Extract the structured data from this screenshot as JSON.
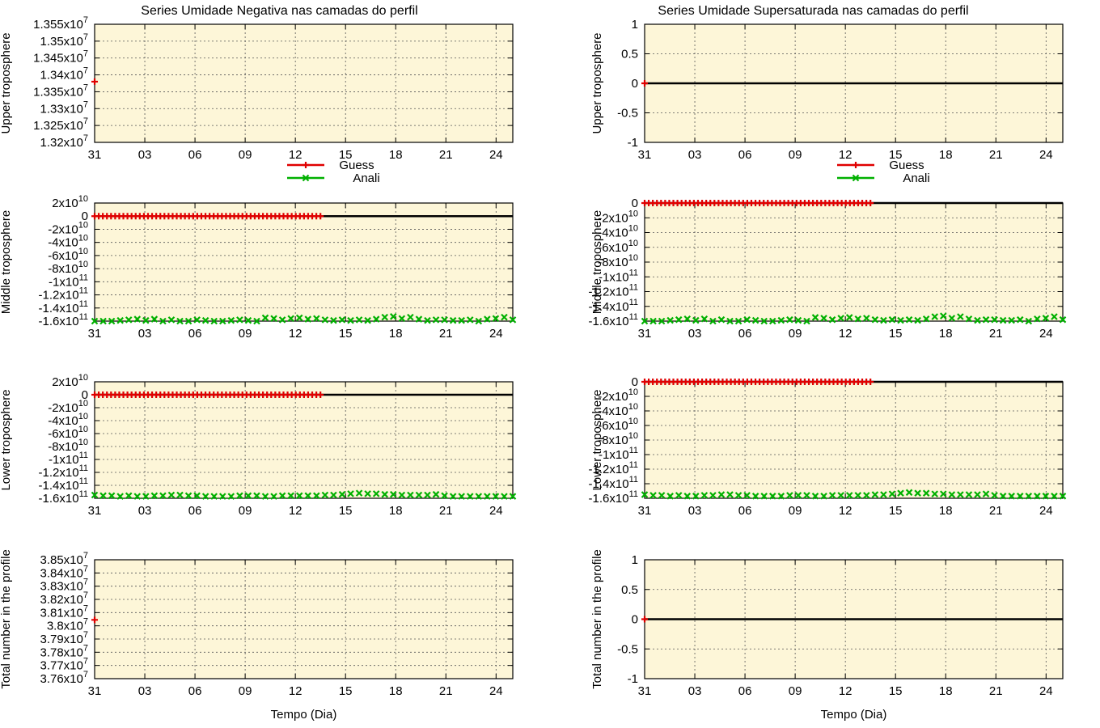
{
  "colors": {
    "guess": "#e00000",
    "anali": "#00b000",
    "plot_bg": "#fdf6d8",
    "zero_line": "#000000",
    "grid": "#555555"
  },
  "legend": {
    "guess": "Guess",
    "anali": "Anali"
  },
  "xlabel": "Tempo (Dia)",
  "xticks": [
    "31",
    "03",
    "06",
    "09",
    "12",
    "15",
    "18",
    "21",
    "24"
  ],
  "chart_data": [
    {
      "id": "neg-upper",
      "type": "scatter",
      "title": "Series Umidade Negativa nas camadas do perfil",
      "ylabel": "Upper troposphere",
      "yticks": [
        {
          "b": "1.355x10",
          "e": "7",
          "v": 13550000
        },
        {
          "b": "1.35x10",
          "e": "7",
          "v": 13500000
        },
        {
          "b": "1.345x10",
          "e": "7",
          "v": 13450000
        },
        {
          "b": "1.34x10",
          "e": "7",
          "v": 13400000
        },
        {
          "b": "1.335x10",
          "e": "7",
          "v": 13350000
        },
        {
          "b": "1.33x10",
          "e": "7",
          "v": 13300000
        },
        {
          "b": "1.325x10",
          "e": "7",
          "v": 13250000
        },
        {
          "b": "1.32x10",
          "e": "7",
          "v": 13200000
        }
      ],
      "ylim": [
        13200000,
        13550000
      ],
      "xlim": [
        0,
        25
      ],
      "zero_line": false,
      "legend": true,
      "series": [
        {
          "name": "Guess",
          "marker": "+",
          "x": [
            0
          ],
          "y": [
            13380000
          ]
        }
      ]
    },
    {
      "id": "sup-upper",
      "type": "scatter",
      "title": "Series Umidade Supersaturada nas camadas do perfil",
      "ylabel": "Upper troposphere",
      "yticks": [
        {
          "b": "1",
          "e": "",
          "v": 1
        },
        {
          "b": "0.5",
          "e": "",
          "v": 0.5
        },
        {
          "b": "0",
          "e": "",
          "v": 0
        },
        {
          "b": "-0.5",
          "e": "",
          "v": -0.5
        },
        {
          "b": "-1",
          "e": "",
          "v": -1
        }
      ],
      "ylim": [
        -1,
        1
      ],
      "xlim": [
        0,
        25
      ],
      "zero_line": true,
      "legend": true,
      "series": [
        {
          "name": "Guess",
          "marker": "+",
          "x": [
            0
          ],
          "y": [
            0
          ]
        }
      ]
    },
    {
      "id": "neg-middle",
      "type": "scatter",
      "title": "",
      "ylabel": "Middle troposphere",
      "yticks": [
        {
          "b": "2x10",
          "e": "10",
          "v": 20000000000.0
        },
        {
          "b": "0",
          "e": "",
          "v": 0
        },
        {
          "b": "-2x10",
          "e": "10",
          "v": -20000000000.0
        },
        {
          "b": "-4x10",
          "e": "10",
          "v": -40000000000.0
        },
        {
          "b": "-6x10",
          "e": "10",
          "v": -60000000000.0
        },
        {
          "b": "-8x10",
          "e": "10",
          "v": -80000000000.0
        },
        {
          "b": "-1x10",
          "e": "11",
          "v": -100000000000.0
        },
        {
          "b": "-1.2x10",
          "e": "11",
          "v": -120000000000.0
        },
        {
          "b": "-1.4x10",
          "e": "11",
          "v": -140000000000.0
        },
        {
          "b": "-1.6x10",
          "e": "11",
          "v": -160000000000.0
        }
      ],
      "ylim": [
        -160000000000.0,
        20000000000.0
      ],
      "xlim": [
        0,
        25
      ],
      "zero_line": true,
      "legend": false,
      "guess": {
        "x_start": 0,
        "x_end": 13.5,
        "y": 0
      },
      "anali": {
        "x_start": 0,
        "x_end": 25,
        "y": [
          -160000000000.0,
          -160000000000.0,
          -160000000000.0,
          -159000000000.0,
          -158000000000.0,
          -157000000000.0,
          -159000000000.0,
          -157000000000.0,
          -160000000000.0,
          -158000000000.0,
          -160000000000.0,
          -160000000000.0,
          -158000000000.0,
          -159000000000.0,
          -160000000000.0,
          -160000000000.0,
          -159000000000.0,
          -158000000000.0,
          -159000000000.0,
          -160000000000.0,
          -155000000000.0,
          -156000000000.0,
          -158000000000.0,
          -156000000000.0,
          -155000000000.0,
          -157000000000.0,
          -156000000000.0,
          -158000000000.0,
          -159000000000.0,
          -158000000000.0,
          -159000000000.0,
          -158000000000.0,
          -159000000000.0,
          -157000000000.0,
          -154000000000.0,
          -153000000000.0,
          -156000000000.0,
          -154000000000.0,
          -157000000000.0,
          -159000000000.0,
          -158000000000.0,
          -158000000000.0,
          -159000000000.0,
          -159000000000.0,
          -158000000000.0,
          -160000000000.0,
          -157000000000.0,
          -156000000000.0,
          -154000000000.0,
          -158000000000.0
        ]
      }
    },
    {
      "id": "sup-middle",
      "type": "scatter",
      "title": "",
      "ylabel": "Middle troposphere",
      "yticks": [
        {
          "b": "0",
          "e": "",
          "v": 0
        },
        {
          "b": "-2x10",
          "e": "10",
          "v": -20000000000.0
        },
        {
          "b": "-4x10",
          "e": "10",
          "v": -40000000000.0
        },
        {
          "b": "-6x10",
          "e": "10",
          "v": -60000000000.0
        },
        {
          "b": "-8x10",
          "e": "10",
          "v": -80000000000.0
        },
        {
          "b": "-1x10",
          "e": "11",
          "v": -100000000000.0
        },
        {
          "b": "-1.2x10",
          "e": "11",
          "v": -120000000000.0
        },
        {
          "b": "-1.4x10",
          "e": "11",
          "v": -140000000000.0
        },
        {
          "b": "-1.6x10",
          "e": "11",
          "v": -160000000000.0
        }
      ],
      "ylim": [
        -160000000000.0,
        0
      ],
      "xlim": [
        0,
        25
      ],
      "zero_line": true,
      "legend": false,
      "guess": {
        "x_start": 0,
        "x_end": 13.5,
        "y": 0
      },
      "anali": {
        "x_start": 0,
        "x_end": 25,
        "y": [
          -160000000000.0,
          -160000000000.0,
          -160000000000.0,
          -159000000000.0,
          -158000000000.0,
          -157000000000.0,
          -159000000000.0,
          -157000000000.0,
          -160000000000.0,
          -158000000000.0,
          -160000000000.0,
          -160000000000.0,
          -158000000000.0,
          -159000000000.0,
          -160000000000.0,
          -160000000000.0,
          -159000000000.0,
          -158000000000.0,
          -159000000000.0,
          -160000000000.0,
          -155000000000.0,
          -156000000000.0,
          -158000000000.0,
          -156000000000.0,
          -155000000000.0,
          -157000000000.0,
          -156000000000.0,
          -158000000000.0,
          -159000000000.0,
          -158000000000.0,
          -159000000000.0,
          -158000000000.0,
          -159000000000.0,
          -157000000000.0,
          -154000000000.0,
          -153000000000.0,
          -156000000000.0,
          -154000000000.0,
          -157000000000.0,
          -159000000000.0,
          -158000000000.0,
          -158000000000.0,
          -159000000000.0,
          -159000000000.0,
          -158000000000.0,
          -160000000000.0,
          -157000000000.0,
          -156000000000.0,
          -154000000000.0,
          -158000000000.0
        ]
      }
    },
    {
      "id": "neg-lower",
      "type": "scatter",
      "title": "",
      "ylabel": "Lower troposphere",
      "yticks": [
        {
          "b": "2x10",
          "e": "10",
          "v": 20000000000.0
        },
        {
          "b": "0",
          "e": "",
          "v": 0
        },
        {
          "b": "-2x10",
          "e": "10",
          "v": -20000000000.0
        },
        {
          "b": "-4x10",
          "e": "10",
          "v": -40000000000.0
        },
        {
          "b": "-6x10",
          "e": "10",
          "v": -60000000000.0
        },
        {
          "b": "-8x10",
          "e": "10",
          "v": -80000000000.0
        },
        {
          "b": "-1x10",
          "e": "11",
          "v": -100000000000.0
        },
        {
          "b": "-1.2x10",
          "e": "11",
          "v": -120000000000.0
        },
        {
          "b": "-1.4x10",
          "e": "11",
          "v": -140000000000.0
        },
        {
          "b": "-1.6x10",
          "e": "11",
          "v": -160000000000.0
        }
      ],
      "ylim": [
        -160000000000.0,
        20000000000.0
      ],
      "xlim": [
        0,
        25
      ],
      "zero_line": true,
      "legend": false,
      "guess": {
        "x_start": 0,
        "x_end": 13.5,
        "y": 0
      },
      "anali": {
        "x_start": 0,
        "x_end": 25,
        "y": [
          -155000000000.0,
          -156000000000.0,
          -156000000000.0,
          -157000000000.0,
          -156000000000.0,
          -157000000000.0,
          -157000000000.0,
          -156000000000.0,
          -156000000000.0,
          -155000000000.0,
          -155000000000.0,
          -156000000000.0,
          -156000000000.0,
          -157000000000.0,
          -157000000000.0,
          -157000000000.0,
          -157000000000.0,
          -156000000000.0,
          -156000000000.0,
          -156000000000.0,
          -157000000000.0,
          -157000000000.0,
          -156000000000.0,
          -156000000000.0,
          -156000000000.0,
          -156000000000.0,
          -156000000000.0,
          -155000000000.0,
          -155000000000.0,
          -154000000000.0,
          -153000000000.0,
          -152000000000.0,
          -153000000000.0,
          -153000000000.0,
          -154000000000.0,
          -154000000000.0,
          -155000000000.0,
          -155000000000.0,
          -155000000000.0,
          -155000000000.0,
          -154000000000.0,
          -156000000000.0,
          -157000000000.0,
          -157000000000.0,
          -157000000000.0,
          -157000000000.0,
          -157000000000.0,
          -157000000000.0,
          -157000000000.0,
          -157000000000.0
        ]
      }
    },
    {
      "id": "sup-lower",
      "type": "scatter",
      "title": "",
      "ylabel": "Lower troposphere",
      "yticks": [
        {
          "b": "0",
          "e": "",
          "v": 0
        },
        {
          "b": "-2x10",
          "e": "10",
          "v": -20000000000.0
        },
        {
          "b": "-4x10",
          "e": "10",
          "v": -40000000000.0
        },
        {
          "b": "-6x10",
          "e": "10",
          "v": -60000000000.0
        },
        {
          "b": "-8x10",
          "e": "10",
          "v": -80000000000.0
        },
        {
          "b": "-1x10",
          "e": "11",
          "v": -100000000000.0
        },
        {
          "b": "-1.2x10",
          "e": "11",
          "v": -120000000000.0
        },
        {
          "b": "-1.4x10",
          "e": "11",
          "v": -140000000000.0
        },
        {
          "b": "-1.6x10",
          "e": "11",
          "v": -160000000000.0
        }
      ],
      "ylim": [
        -160000000000.0,
        0
      ],
      "xlim": [
        0,
        25
      ],
      "zero_line": true,
      "legend": false,
      "guess": {
        "x_start": 0,
        "x_end": 13.5,
        "y": 0
      },
      "anali": {
        "x_start": 0,
        "x_end": 25,
        "y": [
          -155000000000.0,
          -156000000000.0,
          -156000000000.0,
          -157000000000.0,
          -156000000000.0,
          -157000000000.0,
          -157000000000.0,
          -156000000000.0,
          -156000000000.0,
          -155000000000.0,
          -155000000000.0,
          -156000000000.0,
          -156000000000.0,
          -157000000000.0,
          -157000000000.0,
          -157000000000.0,
          -157000000000.0,
          -156000000000.0,
          -156000000000.0,
          -156000000000.0,
          -157000000000.0,
          -157000000000.0,
          -156000000000.0,
          -156000000000.0,
          -156000000000.0,
          -156000000000.0,
          -156000000000.0,
          -155000000000.0,
          -155000000000.0,
          -154000000000.0,
          -153000000000.0,
          -152000000000.0,
          -153000000000.0,
          -153000000000.0,
          -154000000000.0,
          -154000000000.0,
          -155000000000.0,
          -155000000000.0,
          -155000000000.0,
          -155000000000.0,
          -154000000000.0,
          -156000000000.0,
          -157000000000.0,
          -157000000000.0,
          -157000000000.0,
          -157000000000.0,
          -157000000000.0,
          -157000000000.0,
          -157000000000.0,
          -157000000000.0
        ]
      }
    },
    {
      "id": "neg-total",
      "type": "scatter",
      "title": "",
      "ylabel": "Total number in the profile",
      "yticks": [
        {
          "b": "3.85x10",
          "e": "7",
          "v": 38500000
        },
        {
          "b": "3.84x10",
          "e": "7",
          "v": 38400000
        },
        {
          "b": "3.83x10",
          "e": "7",
          "v": 38300000
        },
        {
          "b": "3.82x10",
          "e": "7",
          "v": 38200000
        },
        {
          "b": "3.81x10",
          "e": "7",
          "v": 38100000
        },
        {
          "b": "3.8x10",
          "e": "7",
          "v": 38000000
        },
        {
          "b": "3.79x10",
          "e": "7",
          "v": 37900000
        },
        {
          "b": "3.78x10",
          "e": "7",
          "v": 37800000
        },
        {
          "b": "3.77x10",
          "e": "7",
          "v": 37700000
        },
        {
          "b": "3.76x10",
          "e": "7",
          "v": 37600000
        }
      ],
      "ylim": [
        37600000,
        38500000
      ],
      "xlim": [
        0,
        25
      ],
      "zero_line": false,
      "legend": false,
      "series": [
        {
          "name": "Guess",
          "marker": "+",
          "x": [
            0
          ],
          "y": [
            38045000
          ]
        }
      ]
    },
    {
      "id": "sup-total",
      "type": "scatter",
      "title": "",
      "ylabel": "Total number in the profile",
      "yticks": [
        {
          "b": "1",
          "e": "",
          "v": 1
        },
        {
          "b": "0.5",
          "e": "",
          "v": 0.5
        },
        {
          "b": "0",
          "e": "",
          "v": 0
        },
        {
          "b": "-0.5",
          "e": "",
          "v": -0.5
        },
        {
          "b": "-1",
          "e": "",
          "v": -1
        }
      ],
      "ylim": [
        -1,
        1
      ],
      "xlim": [
        0,
        25
      ],
      "zero_line": true,
      "legend": false,
      "series": [
        {
          "name": "Guess",
          "marker": "+",
          "x": [
            0
          ],
          "y": [
            0
          ]
        }
      ]
    }
  ]
}
